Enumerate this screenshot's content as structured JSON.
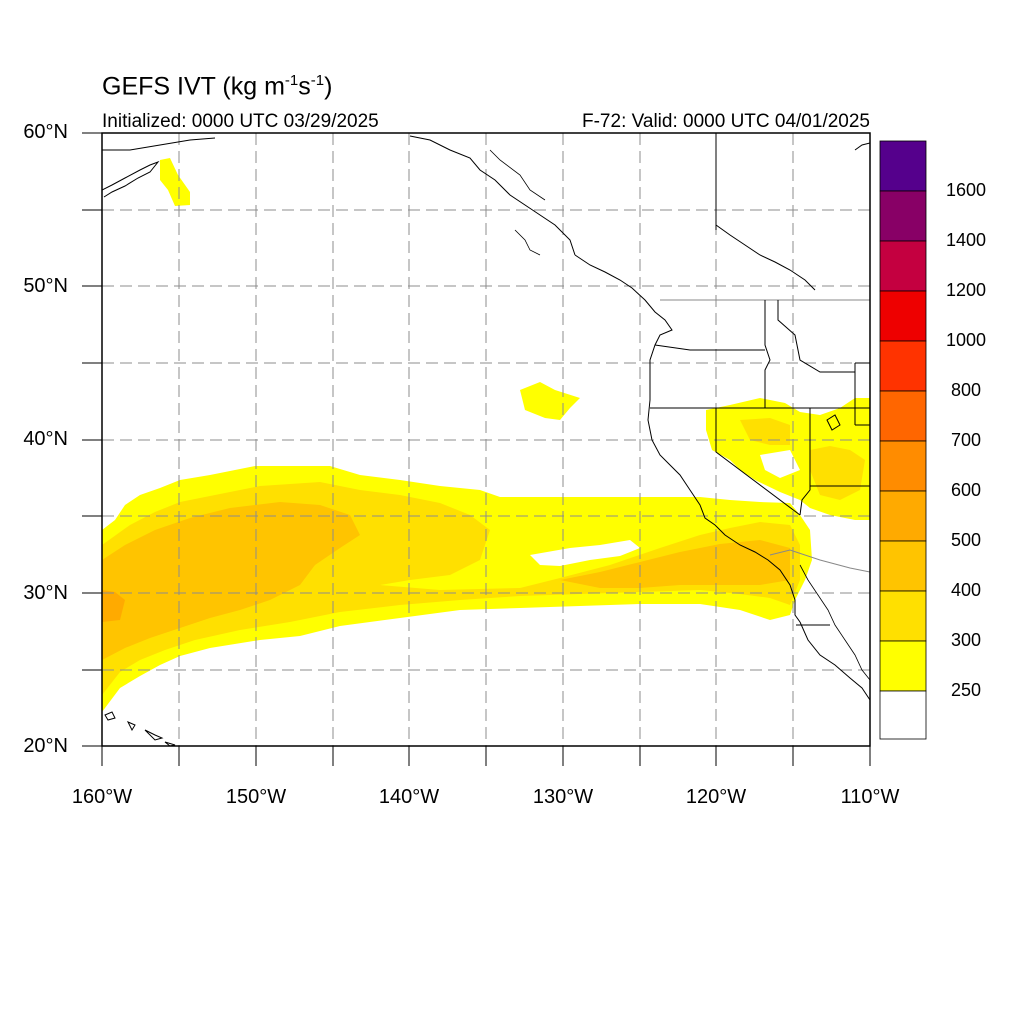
{
  "header": {
    "title_prefix": "GEFS IVT (kg m",
    "title_exp1": "-1",
    "title_mid": "s",
    "title_exp2": "-1",
    "title_suffix": ")",
    "initialized": "Initialized: 0000 UTC 03/29/2025",
    "valid": "F-72: Valid: 0000 UTC 04/01/2025"
  },
  "map": {
    "lon_range": [
      -160,
      -110
    ],
    "lat_range": [
      20,
      60
    ],
    "lat_labels": [
      "20°N",
      "30°N",
      "40°N",
      "50°N",
      "60°N"
    ],
    "lon_labels": [
      "160°W",
      "150°W",
      "140°W",
      "130°W",
      "120°W",
      "110°W"
    ]
  },
  "colorbar": {
    "levels": [
      "250",
      "300",
      "400",
      "500",
      "600",
      "700",
      "800",
      "1000",
      "1200",
      "1400",
      "1600"
    ],
    "colors": [
      "#ffffff",
      "#ffff00",
      "#ffe000",
      "#ffc400",
      "#ffaa00",
      "#ff8c00",
      "#ff6600",
      "#ff3300",
      "#ee0000",
      "#c40040",
      "#880066",
      "#55008c"
    ]
  }
}
